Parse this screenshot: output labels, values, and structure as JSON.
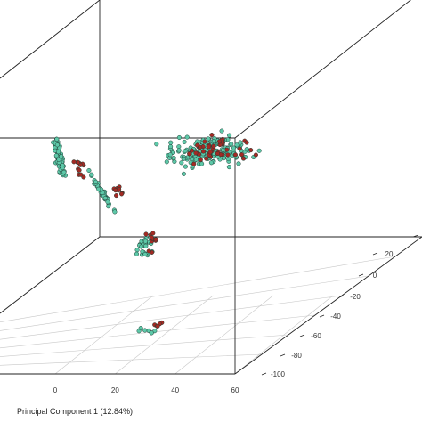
{
  "chart_data": {
    "type": "scatter",
    "projection": "3d",
    "grid": true,
    "title": "",
    "xlabel": "Principal Component 1 (12.84%)",
    "x_ticks": [
      "0",
      "20",
      "40",
      "60"
    ],
    "depth_ticks": [
      "20",
      "0",
      "-20",
      "-40",
      "-60",
      "-80",
      "-100"
    ],
    "xlim": [
      -15,
      62
    ],
    "depth_lim": [
      -110,
      35
    ],
    "colors": {
      "teal": "#5dc8a8",
      "red": "#a32a24",
      "edge": "#1f3f36",
      "box": "#222222",
      "grid": "#c8c8c8"
    },
    "clusters": [
      {
        "label": "upper-left",
        "color": "teal",
        "n": 95,
        "x": [
          -1,
          4
        ],
        "y": [
          150,
          205
        ],
        "tilt": 0.55,
        "spread": [
          4,
          22
        ]
      },
      {
        "label": "upper-left",
        "color": "red",
        "n": 14,
        "x": [
          4,
          12
        ],
        "y": [
          178,
          200
        ],
        "tilt": 0.3,
        "spread": [
          6,
          10
        ]
      },
      {
        "label": "stem",
        "color": "teal",
        "n": 45,
        "x": [
          8,
          24
        ],
        "y": [
          195,
          240
        ],
        "tilt": 1.8,
        "spread": [
          3,
          20
        ]
      },
      {
        "label": "stem",
        "color": "red",
        "n": 10,
        "x": [
          16,
          26
        ],
        "y": [
          208,
          222
        ],
        "tilt": 0.2,
        "spread": [
          8,
          6
        ]
      },
      {
        "label": "right",
        "color": "teal",
        "n": 170,
        "x": [
          45,
          58
        ],
        "y": [
          130,
          210
        ],
        "tilt": -0.25,
        "spread": [
          50,
          18
        ]
      },
      {
        "label": "right",
        "color": "red",
        "n": 45,
        "x": [
          52,
          58
        ],
        "y": [
          135,
          200
        ],
        "tilt": -0.25,
        "spread": [
          40,
          15
        ]
      },
      {
        "label": "middle",
        "color": "teal",
        "n": 30,
        "x": [
          26,
          34
        ],
        "y": [
          255,
          298
        ],
        "tilt": 0.2,
        "spread": [
          10,
          14
        ]
      },
      {
        "label": "middle",
        "color": "red",
        "n": 10,
        "x": [
          30,
          36
        ],
        "y": [
          248,
          290
        ],
        "tilt": 0.5,
        "spread": [
          8,
          16
        ]
      },
      {
        "label": "bottom",
        "color": "teal",
        "n": 7,
        "x": [
          28,
          33
        ],
        "y": [
          362,
          380
        ],
        "tilt": 0.0,
        "spread": [
          8,
          6
        ]
      },
      {
        "label": "bottom",
        "color": "red",
        "n": 5,
        "x": [
          33,
          36
        ],
        "y": [
          358,
          372
        ],
        "tilt": 0.0,
        "spread": [
          6,
          6
        ]
      }
    ]
  }
}
